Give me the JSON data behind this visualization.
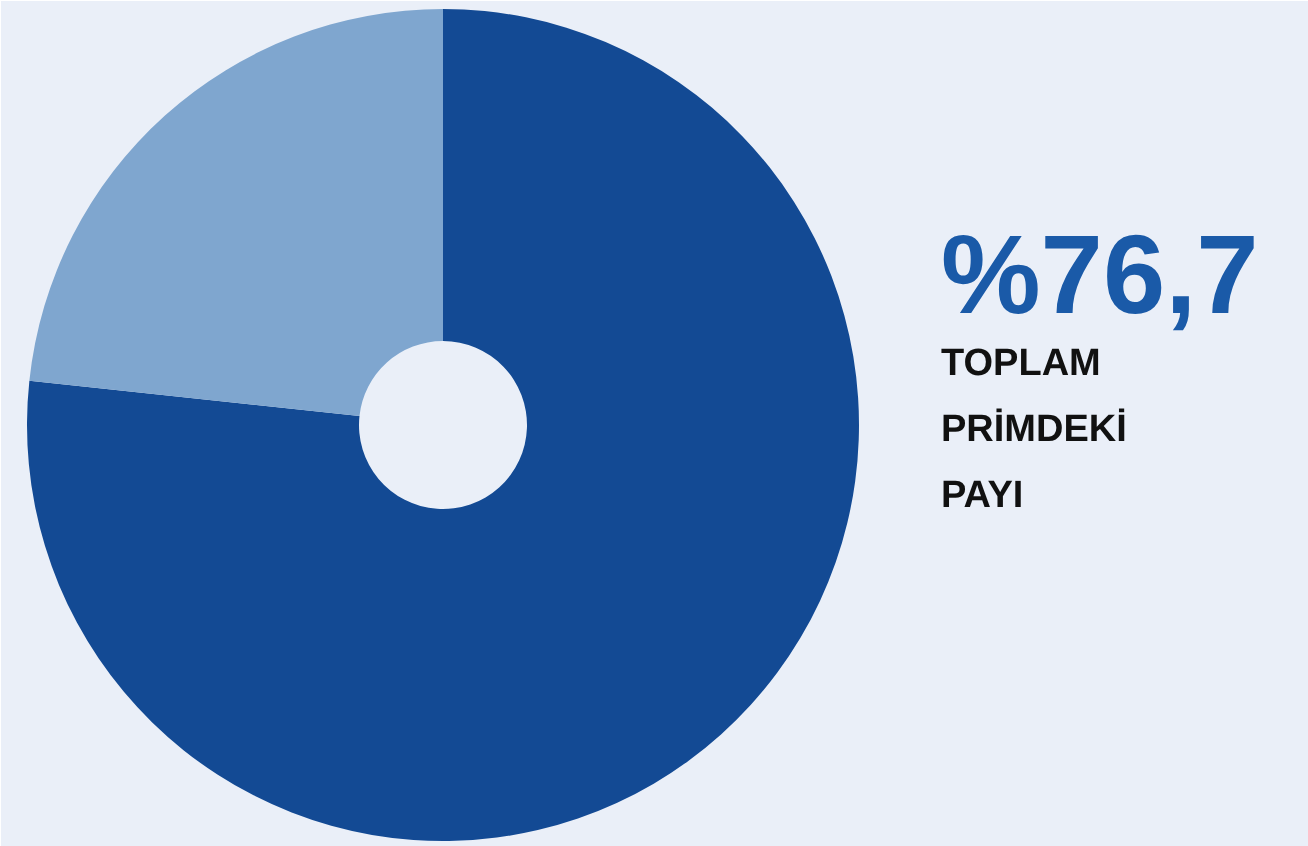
{
  "chart_data": {
    "type": "donut",
    "categories": [
      null,
      null
    ],
    "values": [
      76.7,
      23.3
    ],
    "colors": [
      "#134a94",
      "#7fa6cf"
    ],
    "value_labels": [
      "%76,7",
      null
    ],
    "annotations": [
      "TOPLAM\nPRİMDEKİ\nPAYI"
    ]
  }
}
